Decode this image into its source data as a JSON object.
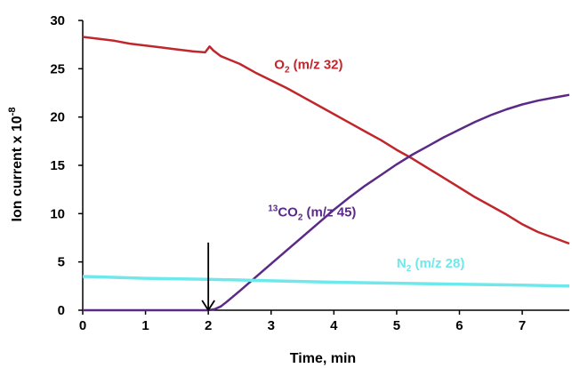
{
  "chart_data": {
    "type": "line",
    "xlabel": "Time, min",
    "ylabel": {
      "text": "Ion current x 10",
      "exponent": "-8"
    },
    "xlim": [
      0,
      7.75
    ],
    "ylim": [
      0,
      30
    ],
    "x_ticks": [
      0,
      1,
      2,
      3,
      4,
      5,
      6,
      7
    ],
    "y_ticks": [
      0,
      5,
      10,
      15,
      20,
      25,
      30
    ],
    "grid": false,
    "annotations": [
      {
        "type": "arrow",
        "x": 2.0,
        "y_from": 7.0,
        "y_to": 0.0,
        "color": "#000000"
      }
    ],
    "series": [
      {
        "label_parts": {
          "pre_sup": "",
          "main": "O",
          "sub": "2",
          "rest": " (m/z 32)"
        },
        "color": "#c0272d",
        "label_at": {
          "x": 3.05,
          "y": 25.0
        },
        "points": [
          [
            0.0,
            28.3
          ],
          [
            0.25,
            28.1
          ],
          [
            0.5,
            27.9
          ],
          [
            0.75,
            27.6
          ],
          [
            1.0,
            27.4
          ],
          [
            1.25,
            27.2
          ],
          [
            1.5,
            27.0
          ],
          [
            1.75,
            26.8
          ],
          [
            1.95,
            26.7
          ],
          [
            2.02,
            27.3
          ],
          [
            2.08,
            26.9
          ],
          [
            2.2,
            26.3
          ],
          [
            2.5,
            25.5
          ],
          [
            2.75,
            24.6
          ],
          [
            3.0,
            23.8
          ],
          [
            3.25,
            23.0
          ],
          [
            3.5,
            22.1
          ],
          [
            3.75,
            21.2
          ],
          [
            4.0,
            20.3
          ],
          [
            4.25,
            19.4
          ],
          [
            4.5,
            18.5
          ],
          [
            4.75,
            17.6
          ],
          [
            5.0,
            16.6
          ],
          [
            5.25,
            15.7
          ],
          [
            5.5,
            14.7
          ],
          [
            5.75,
            13.7
          ],
          [
            6.0,
            12.7
          ],
          [
            6.25,
            11.7
          ],
          [
            6.5,
            10.8
          ],
          [
            6.75,
            9.9
          ],
          [
            7.0,
            8.9
          ],
          [
            7.25,
            8.1
          ],
          [
            7.5,
            7.5
          ],
          [
            7.75,
            6.9
          ]
        ]
      },
      {
        "label_parts": {
          "pre_sup": "13",
          "main": "CO",
          "sub": "2",
          "rest": " (m/z 45)"
        },
        "color": "#5b2a86",
        "label_at": {
          "x": 2.95,
          "y": 9.7
        },
        "points": [
          [
            0.0,
            0.0
          ],
          [
            1.0,
            0.0
          ],
          [
            2.0,
            0.0
          ],
          [
            2.1,
            0.1
          ],
          [
            2.2,
            0.4
          ],
          [
            2.3,
            0.9
          ],
          [
            2.5,
            2.0
          ],
          [
            2.75,
            3.4
          ],
          [
            3.0,
            4.8
          ],
          [
            3.25,
            6.2
          ],
          [
            3.5,
            7.6
          ],
          [
            3.75,
            9.0
          ],
          [
            4.0,
            10.4
          ],
          [
            4.25,
            11.7
          ],
          [
            4.5,
            12.9
          ],
          [
            4.75,
            14.0
          ],
          [
            5.0,
            15.1
          ],
          [
            5.25,
            16.1
          ],
          [
            5.5,
            17.0
          ],
          [
            5.75,
            17.9
          ],
          [
            6.0,
            18.7
          ],
          [
            6.25,
            19.5
          ],
          [
            6.5,
            20.2
          ],
          [
            6.75,
            20.8
          ],
          [
            7.0,
            21.3
          ],
          [
            7.25,
            21.7
          ],
          [
            7.5,
            22.0
          ],
          [
            7.75,
            22.3
          ]
        ]
      },
      {
        "label_parts": {
          "pre_sup": "",
          "main": "N",
          "sub": "2",
          "rest": " (m/z 28)"
        },
        "color": "#6fe8ec",
        "label_at": {
          "x": 5.0,
          "y": 4.4
        },
        "points": [
          [
            0.0,
            3.5
          ],
          [
            1.0,
            3.3
          ],
          [
            2.0,
            3.2
          ],
          [
            3.0,
            3.05
          ],
          [
            4.0,
            2.9
          ],
          [
            5.0,
            2.8
          ],
          [
            6.0,
            2.7
          ],
          [
            7.0,
            2.6
          ],
          [
            7.75,
            2.5
          ]
        ]
      }
    ]
  }
}
